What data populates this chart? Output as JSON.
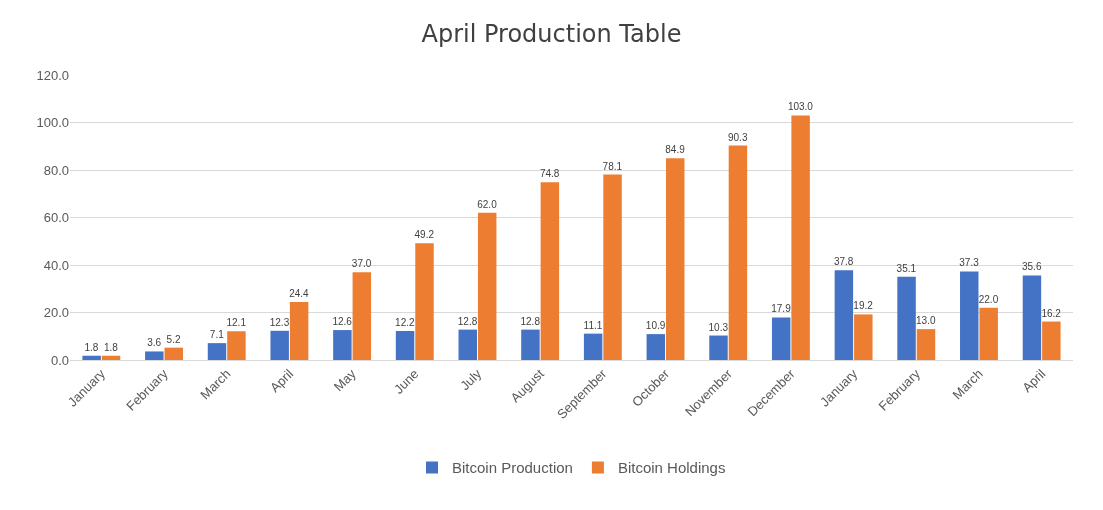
{
  "chart_data": {
    "type": "bar",
    "title": "April Production Table",
    "categories": [
      "January",
      "February",
      "March",
      "April",
      "May",
      "June",
      "July",
      "August",
      "September",
      "October",
      "November",
      "December",
      "January",
      "February",
      "March",
      "April"
    ],
    "series": [
      {
        "name": "Bitcoin Production",
        "color": "#4472c4",
        "values": [
          1.8,
          3.6,
          7.1,
          12.3,
          12.6,
          12.2,
          12.8,
          12.8,
          11.1,
          10.9,
          10.3,
          17.9,
          37.8,
          35.1,
          37.3,
          35.6
        ],
        "value_labels": [
          "1.8",
          "3.6",
          "7.1",
          "12.3",
          "12.6",
          "12.2",
          "12.8",
          "12.8",
          "11.1",
          "10.9",
          "10.3",
          "17.9",
          "37.8",
          "35.1",
          "37.3",
          "35.6"
        ]
      },
      {
        "name": "Bitcoin Holdings",
        "color": "#ed7d31",
        "values": [
          1.8,
          5.2,
          12.1,
          24.4,
          37.0,
          49.2,
          62.0,
          74.8,
          78.1,
          84.9,
          90.3,
          103.0,
          19.2,
          13.0,
          22.0,
          16.2
        ],
        "value_labels": [
          "1.8",
          "5.2",
          "12.1",
          "24.4",
          "37.0",
          "49.2",
          "62.0",
          "74.8",
          "78.1",
          "84.9",
          "90.3",
          "103.0",
          "19.2",
          "13.0",
          "22.0",
          "16.2"
        ]
      }
    ],
    "ylim": [
      0,
      120
    ],
    "yticks": [
      {
        "value": 0,
        "label": "0.0"
      },
      {
        "value": 20,
        "label": "20.0"
      },
      {
        "value": 40,
        "label": "40.0"
      },
      {
        "value": 60,
        "label": "60.0"
      },
      {
        "value": 80,
        "label": "80.0"
      },
      {
        "value": 100,
        "label": "100.0"
      },
      {
        "value": 120,
        "label": "120.0"
      }
    ],
    "grid": "y",
    "legend": "bottom"
  }
}
